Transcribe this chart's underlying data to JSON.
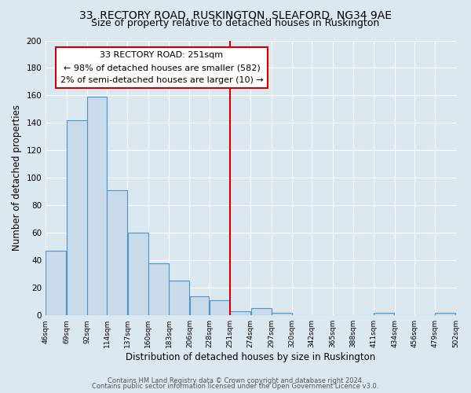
{
  "title1": "33, RECTORY ROAD, RUSKINGTON, SLEAFORD, NG34 9AE",
  "title2": "Size of property relative to detached houses in Ruskington",
  "xlabel": "Distribution of detached houses by size in Ruskington",
  "ylabel": "Number of detached properties",
  "bar_edges": [
    46,
    69,
    92,
    114,
    137,
    160,
    183,
    206,
    228,
    251,
    274,
    297,
    320,
    342,
    365,
    388,
    411,
    434,
    456,
    479,
    502
  ],
  "bar_heights": [
    47,
    142,
    159,
    91,
    60,
    38,
    25,
    14,
    11,
    3,
    5,
    2,
    0,
    0,
    0,
    0,
    2,
    0,
    0,
    2
  ],
  "bar_color": "#c9daea",
  "bar_edgecolor": "#4d94c8",
  "vline_x": 251,
  "vline_color": "#cc0000",
  "annotation_title": "33 RECTORY ROAD: 251sqm",
  "annotation_line1": "← 98% of detached houses are smaller (582)",
  "annotation_line2": "2% of semi-detached houses are larger (10) →",
  "annotation_box_edgecolor": "#cc0000",
  "annotation_box_facecolor": "#ffffff",
  "ylim": [
    0,
    200
  ],
  "yticks": [
    0,
    20,
    40,
    60,
    80,
    100,
    120,
    140,
    160,
    180,
    200
  ],
  "tick_labels": [
    "46sqm",
    "69sqm",
    "92sqm",
    "114sqm",
    "137sqm",
    "160sqm",
    "183sqm",
    "206sqm",
    "228sqm",
    "251sqm",
    "274sqm",
    "297sqm",
    "320sqm",
    "342sqm",
    "365sqm",
    "388sqm",
    "411sqm",
    "434sqm",
    "456sqm",
    "479sqm",
    "502sqm"
  ],
  "footer1": "Contains HM Land Registry data © Crown copyright and database right 2024.",
  "footer2": "Contains public sector information licensed under the Open Government Licence v3.0.",
  "bg_color": "#dce8f0",
  "plot_bg_color": "#dce8f0",
  "grid_color": "#ffffff",
  "title1_fontsize": 10,
  "title2_fontsize": 9,
  "xlabel_fontsize": 8.5,
  "ylabel_fontsize": 8.5,
  "annotation_fontsize": 8.0,
  "footer_fontsize": 6.0
}
